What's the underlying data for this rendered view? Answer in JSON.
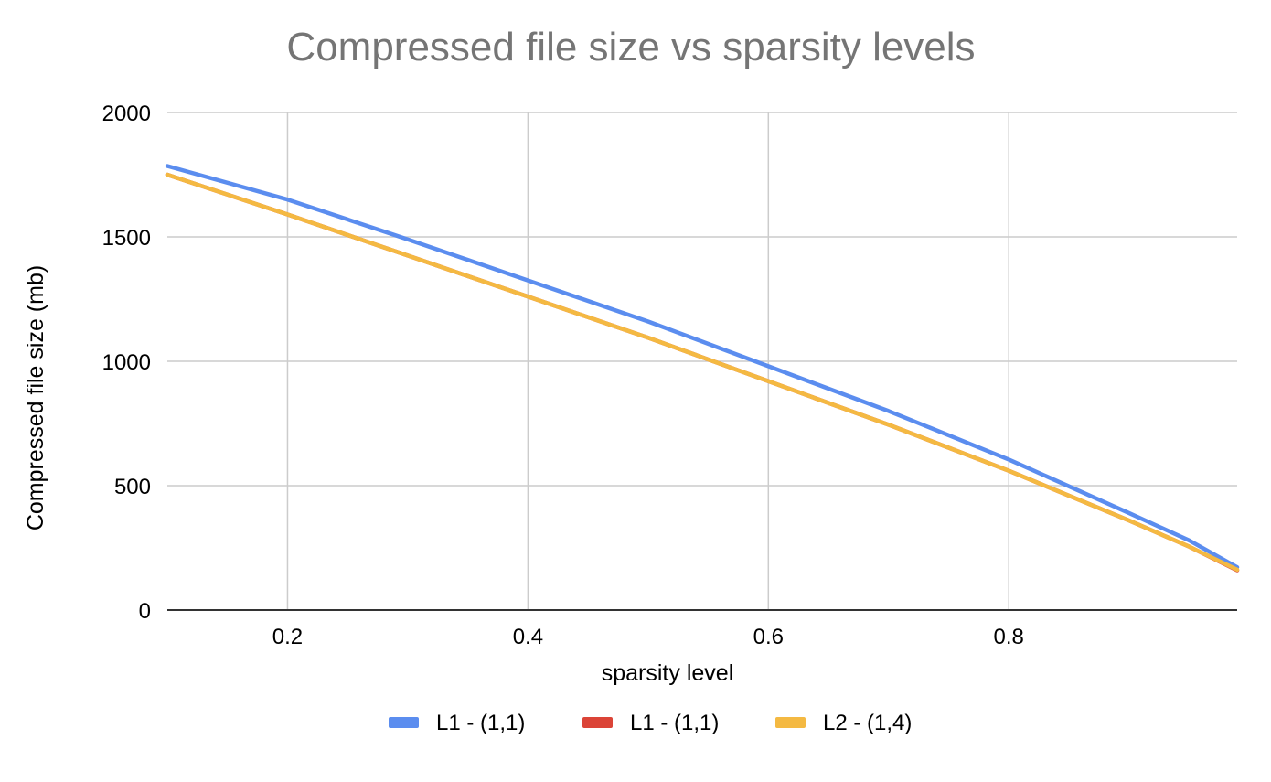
{
  "chart_data": {
    "type": "line",
    "title": "Compressed file size vs sparsity levels",
    "xlabel": "sparsity level",
    "ylabel": "Compressed file size (mb)",
    "xlim": [
      0.1,
      0.99
    ],
    "ylim": [
      0,
      2000
    ],
    "x_ticks": [
      0.2,
      0.4,
      0.6,
      0.8
    ],
    "x_tick_labels": [
      "0.2",
      "0.4",
      "0.6",
      "0.8"
    ],
    "y_ticks": [
      0,
      500,
      1000,
      1500,
      2000
    ],
    "y_tick_labels": [
      "0",
      "500",
      "1000",
      "1500",
      "2000"
    ],
    "grid": true,
    "legend_position": "bottom",
    "x": [
      0.1,
      0.2,
      0.3,
      0.4,
      0.5,
      0.6,
      0.7,
      0.8,
      0.9,
      0.95,
      0.99
    ],
    "series": [
      {
        "name": "L1 - (1,1)",
        "color": "#5B8DEF",
        "values": [
          1785,
          1650,
          1490,
          1325,
          1160,
          980,
          800,
          605,
          390,
          280,
          172
        ]
      },
      {
        "name": "L1 - (1,1)",
        "color": "#DB4437",
        "values": [
          1750,
          1590,
          1425,
          1260,
          1095,
          920,
          745,
          560,
          360,
          255,
          160
        ]
      },
      {
        "name": "L2 - (1,4)",
        "color": "#F4B942",
        "values": [
          1750,
          1590,
          1425,
          1260,
          1095,
          920,
          745,
          560,
          360,
          255,
          162
        ]
      }
    ]
  }
}
